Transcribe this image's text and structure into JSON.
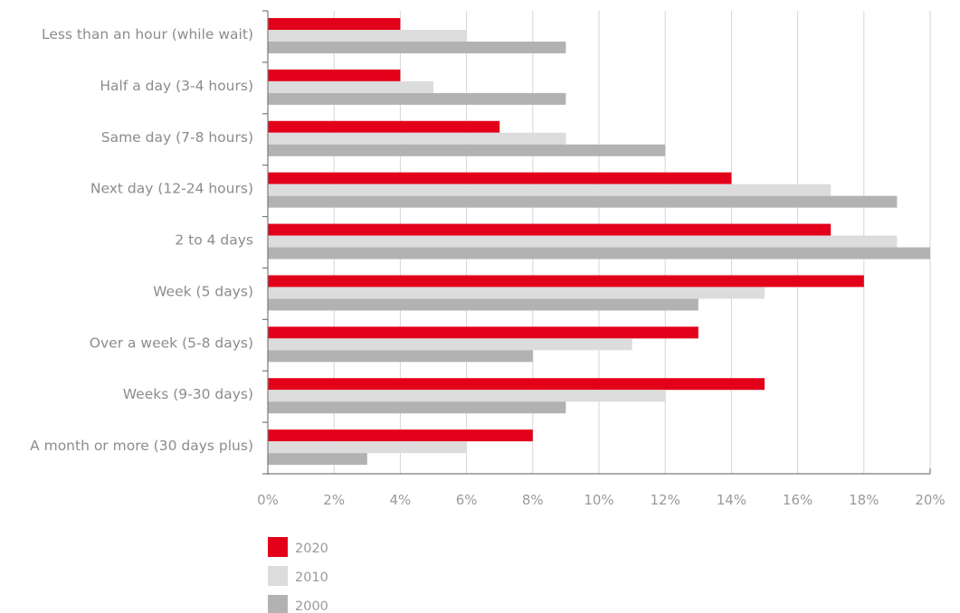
{
  "chart_data": {
    "type": "bar",
    "orientation": "horizontal",
    "categories": [
      "Less than an hour (while wait)",
      "Half a day (3-4 hours)",
      "Same day (7-8 hours)",
      "Next day (12-24 hours)",
      "2 to 4 days",
      "Week (5 days)",
      "Over a week (5-8 days)",
      "Weeks (9-30 days)",
      "A month or more (30 days plus)"
    ],
    "series": [
      {
        "name": "2020",
        "color": "#e2001a",
        "values": [
          4,
          4,
          7,
          14,
          17,
          18,
          13,
          15,
          8
        ]
      },
      {
        "name": "2010",
        "color": "#dcdcdc",
        "values": [
          6,
          5,
          9,
          17,
          19,
          15,
          11,
          12,
          6
        ]
      },
      {
        "name": "2000",
        "color": "#b2b2b2",
        "values": [
          9,
          9,
          12,
          19,
          20,
          13,
          8,
          9,
          3
        ]
      }
    ],
    "x_ticks": [
      "0%",
      "2%",
      "4%",
      "6%",
      "8%",
      "10%",
      "12%",
      "14%",
      "16%",
      "18%",
      "20%"
    ],
    "xlim": [
      0,
      20
    ],
    "x_unit": "%",
    "title": "",
    "xlabel": "",
    "ylabel": "",
    "grid": "vertical",
    "legend_position": "bottom-left"
  }
}
